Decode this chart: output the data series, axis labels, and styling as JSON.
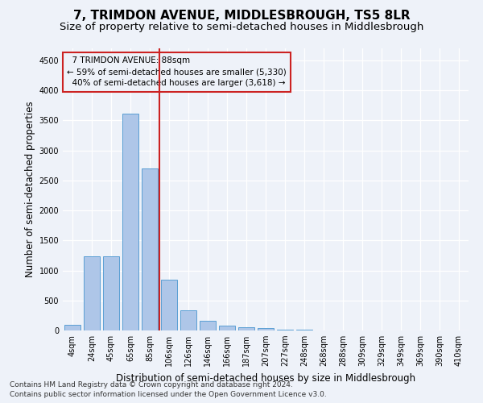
{
  "title": "7, TRIMDON AVENUE, MIDDLESBROUGH, TS5 8LR",
  "subtitle": "Size of property relative to semi-detached houses in Middlesbrough",
  "xlabel": "Distribution of semi-detached houses by size in Middlesbrough",
  "ylabel": "Number of semi-detached properties",
  "footer_line1": "Contains HM Land Registry data © Crown copyright and database right 2024.",
  "footer_line2": "Contains public sector information licensed under the Open Government Licence v3.0.",
  "bar_labels": [
    "4sqm",
    "24sqm",
    "45sqm",
    "65sqm",
    "85sqm",
    "106sqm",
    "126sqm",
    "146sqm",
    "166sqm",
    "187sqm",
    "207sqm",
    "227sqm",
    "248sqm",
    "268sqm",
    "288sqm",
    "309sqm",
    "329sqm",
    "349sqm",
    "369sqm",
    "390sqm",
    "410sqm"
  ],
  "bar_values": [
    90,
    1240,
    1240,
    3610,
    2700,
    840,
    330,
    155,
    80,
    60,
    40,
    20,
    10,
    5,
    5,
    0,
    0,
    0,
    0,
    0,
    0
  ],
  "bar_color": "#aec6e8",
  "bar_edge_color": "#5a9fd4",
  "highlight_color": "#cc2222",
  "property_label": "7 TRIMDON AVENUE: 88sqm",
  "pct_smaller": 59,
  "count_smaller": 5330,
  "pct_larger": 40,
  "count_larger": 3618,
  "vline_x_index": 4.5,
  "ylim": [
    0,
    4700
  ],
  "yticks": [
    0,
    500,
    1000,
    1500,
    2000,
    2500,
    3000,
    3500,
    4000,
    4500
  ],
  "background_color": "#eef2f9",
  "grid_color": "#ffffff",
  "annotation_box_edge_color": "#cc2222",
  "title_fontsize": 11,
  "subtitle_fontsize": 9.5,
  "axis_label_fontsize": 8.5,
  "tick_fontsize": 7,
  "annotation_fontsize": 7.5,
  "footer_fontsize": 6.5
}
